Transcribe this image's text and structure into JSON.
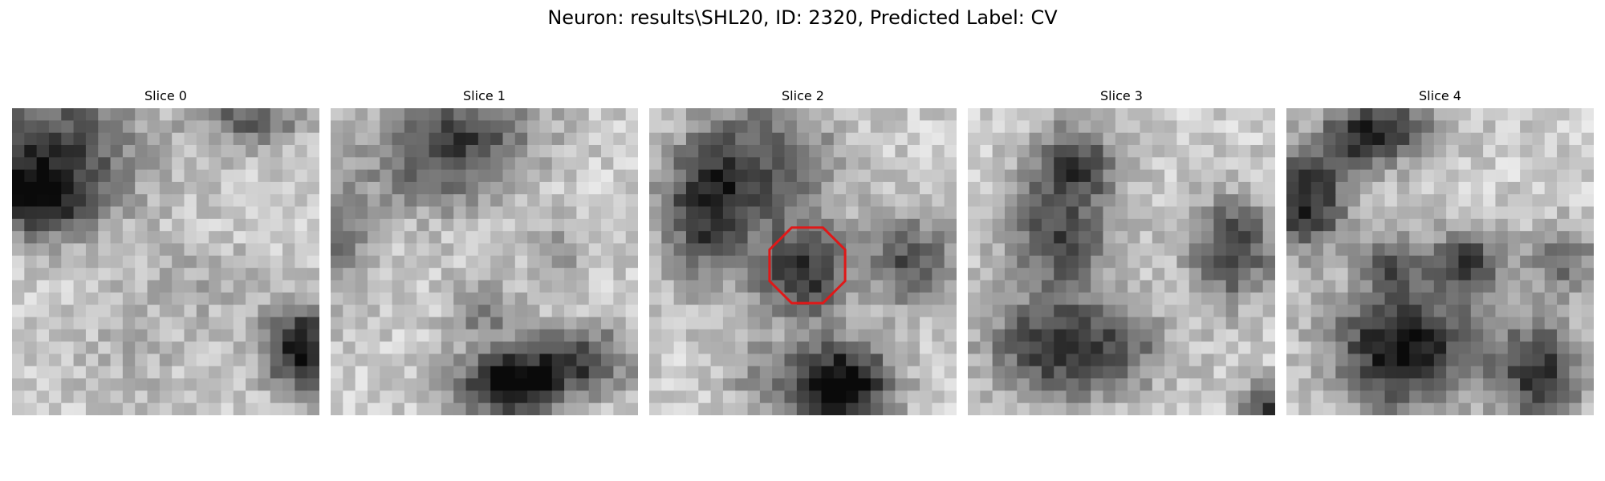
{
  "figure": {
    "title": "Neuron: results\\SHL20, ID: 2320, Predicted Label: CV"
  },
  "panels": [
    {
      "title": "Slice 0"
    },
    {
      "title": "Slice 1"
    },
    {
      "title": "Slice 2"
    },
    {
      "title": "Slice 3"
    },
    {
      "title": "Slice 4"
    }
  ],
  "colors": {
    "background": "#ffffff",
    "outline": "#e01818"
  }
}
